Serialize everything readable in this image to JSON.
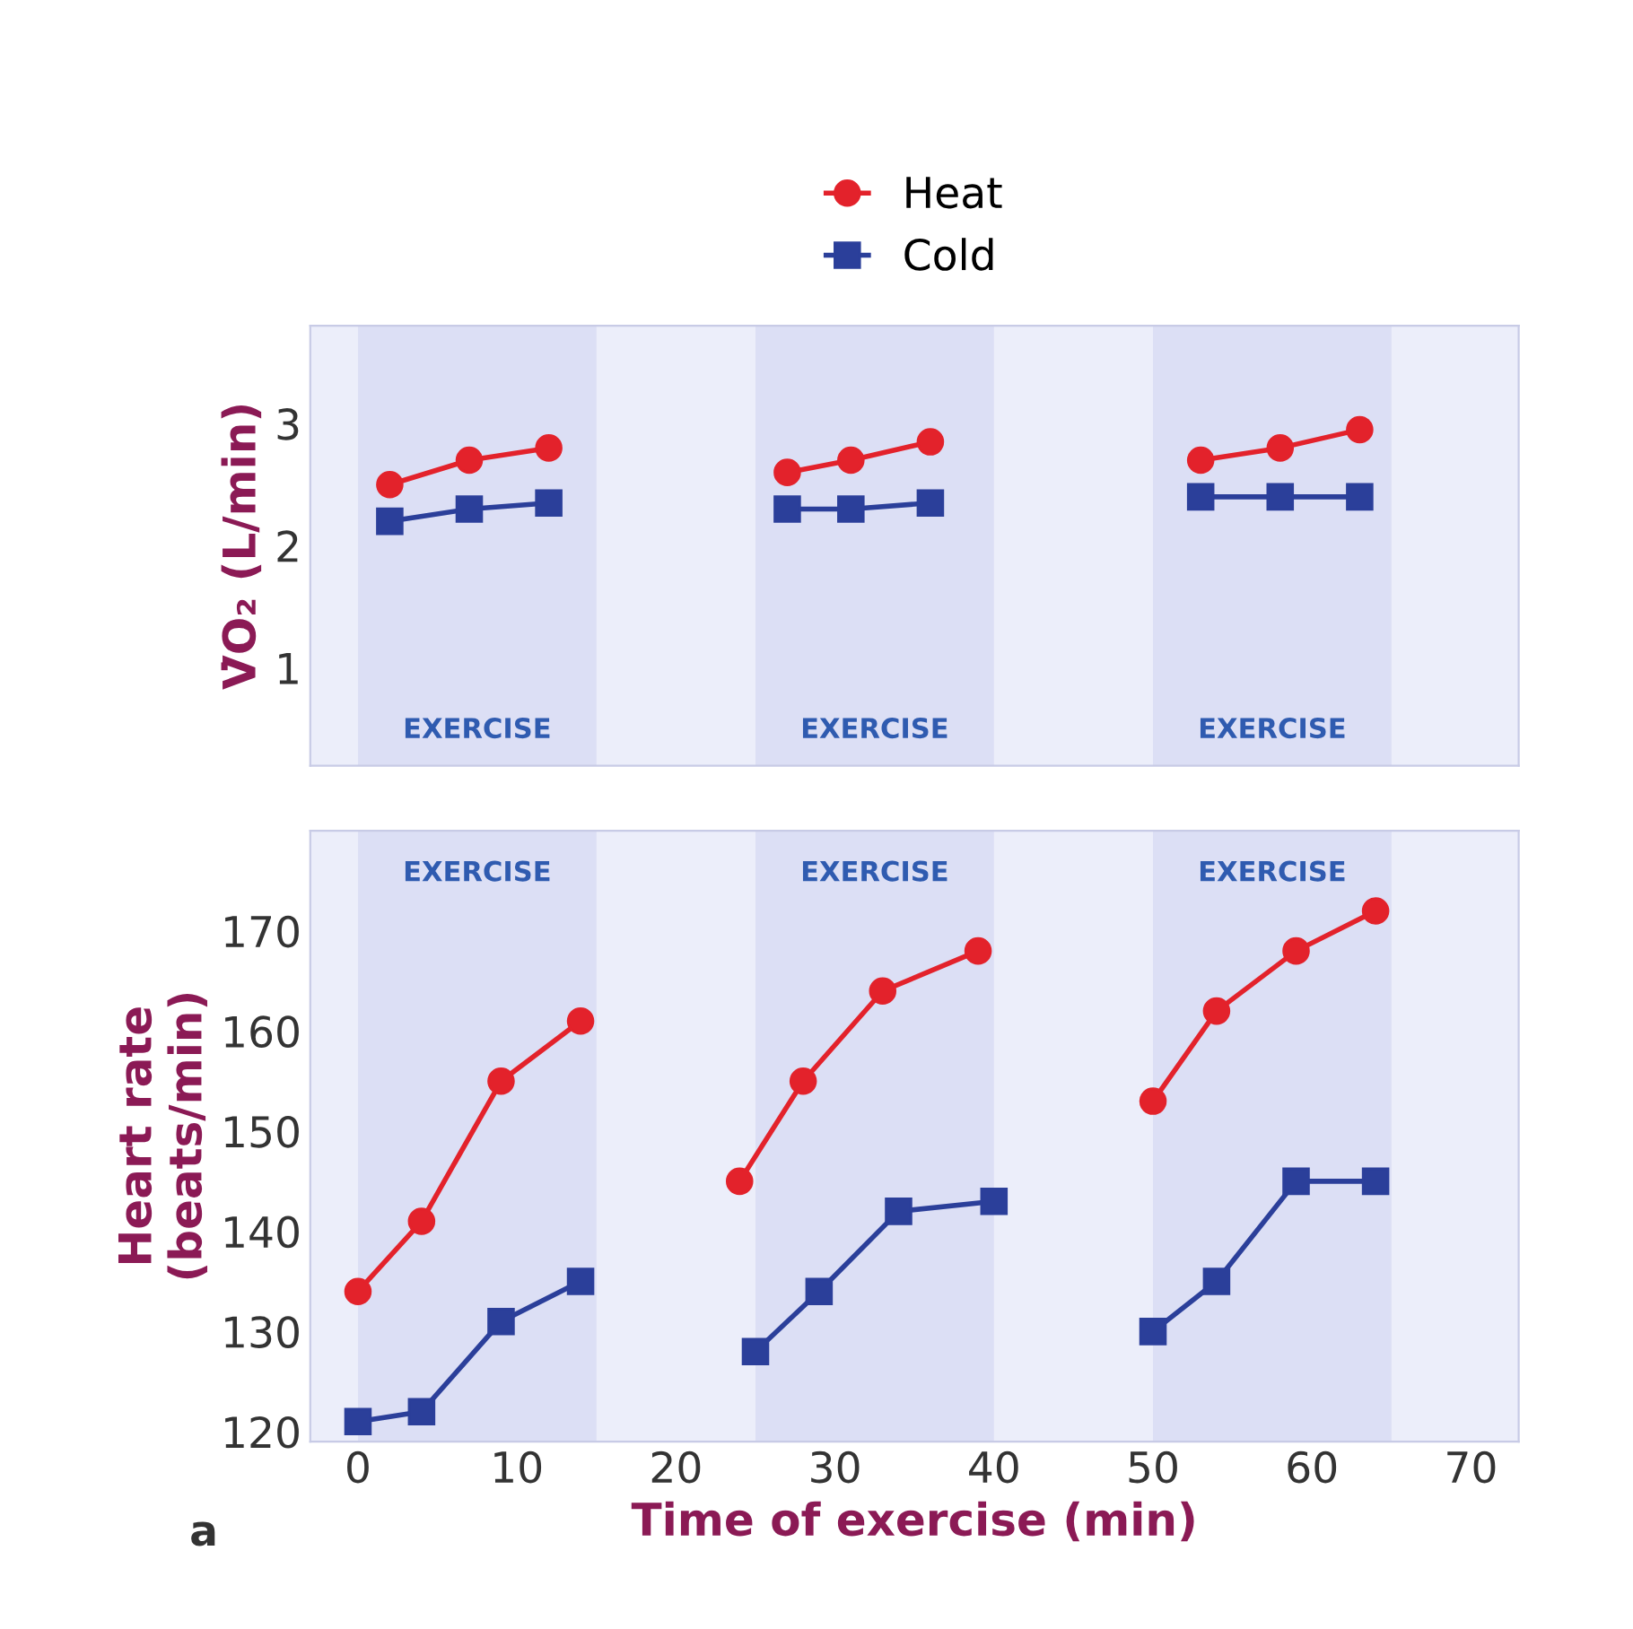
{
  "chart_data": [
    {
      "type": "line",
      "ylabel": "V̇O₂ (L/min)",
      "xlim": [
        -3,
        73
      ],
      "ylim": [
        0.2,
        3.8
      ],
      "yticks": [
        1,
        2,
        3
      ],
      "xticks": [
        0,
        10,
        20,
        30,
        40,
        50,
        60,
        70
      ],
      "tick_labels": "y",
      "legend": "top",
      "grid": false,
      "bands": [
        {
          "axis": "x",
          "from": 0,
          "to": 15,
          "label": "EXERCISE",
          "color": "#dcdff5"
        },
        {
          "axis": "x",
          "from": 25,
          "to": 40,
          "label": "EXERCISE",
          "color": "#dcdff5"
        },
        {
          "axis": "x",
          "from": 50,
          "to": 65,
          "label": "EXERCISE",
          "color": "#dcdff5"
        }
      ],
      "series": [
        {
          "name": "Heat",
          "color": "#e3222b",
          "marker": "circle",
          "x": [
            2,
            7,
            12,
            null,
            27,
            31,
            36,
            null,
            53,
            58,
            63
          ],
          "values": [
            2.5,
            2.7,
            2.8,
            null,
            2.6,
            2.7,
            2.85,
            null,
            2.7,
            2.8,
            2.95
          ]
        },
        {
          "name": "Cold",
          "color": "#2b3f9a",
          "marker": "square",
          "x": [
            2,
            7,
            12,
            null,
            27,
            31,
            36,
            null,
            53,
            58,
            63
          ],
          "values": [
            2.2,
            2.3,
            2.35,
            null,
            2.3,
            2.3,
            2.35,
            null,
            2.4,
            2.4,
            2.4
          ]
        }
      ]
    },
    {
      "type": "line",
      "ylabel": "Heart rate\n(beats/min)",
      "xlabel": "Time of exercise (min)",
      "xlim": [
        -3,
        73
      ],
      "ylim": [
        119,
        180
      ],
      "yticks": [
        120,
        130,
        140,
        150,
        160,
        170
      ],
      "xticks": [
        0,
        10,
        20,
        30,
        40,
        50,
        60,
        70
      ],
      "grid": false,
      "annotations": [
        "a"
      ],
      "bands": [
        {
          "axis": "x",
          "from": 0,
          "to": 15,
          "label": "EXERCISE",
          "color": "#dcdff5"
        },
        {
          "axis": "x",
          "from": 25,
          "to": 40,
          "label": "EXERCISE",
          "color": "#dcdff5"
        },
        {
          "axis": "x",
          "from": 50,
          "to": 65,
          "label": "EXERCISE",
          "color": "#dcdff5"
        }
      ],
      "series": [
        {
          "color": "#e3222b",
          "marker": "circle",
          "x": [
            0,
            4,
            9,
            14,
            null,
            24,
            28,
            33,
            39,
            null,
            50,
            54,
            59,
            64
          ],
          "values": [
            134,
            141,
            155,
            161,
            null,
            145,
            155,
            164,
            168,
            null,
            153,
            162,
            168,
            172
          ]
        },
        {
          "color": "#2b3f9a",
          "marker": "square",
          "x": [
            0,
            4,
            9,
            14,
            null,
            25,
            29,
            34,
            40,
            null,
            50,
            54,
            59,
            64
          ],
          "values": [
            121,
            122,
            131,
            135,
            null,
            128,
            134,
            142,
            143,
            null,
            130,
            135,
            145,
            145
          ]
        }
      ]
    }
  ]
}
